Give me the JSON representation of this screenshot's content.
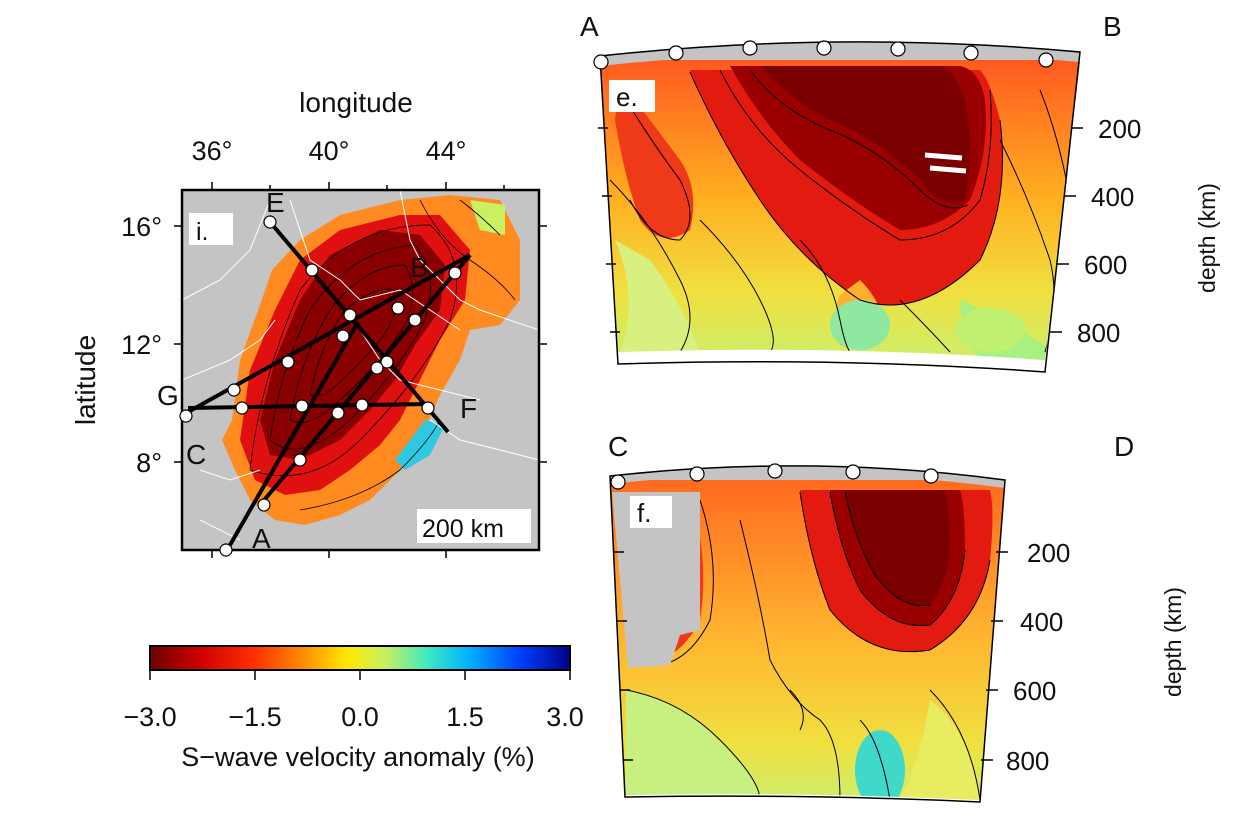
{
  "map": {
    "panel_label": "i.",
    "x_axis_title": "longitude",
    "y_axis_title": "latitude",
    "lon_ticks": [
      "36°",
      "40°",
      "44°"
    ],
    "lat_ticks": [
      "16°",
      "12°",
      "8°"
    ],
    "scale_bar": "200 km",
    "profile_labels": {
      "A": "A",
      "B": "B",
      "C": "C",
      "E": "E",
      "F": "F",
      "G": "G"
    }
  },
  "colorbar": {
    "ticks": [
      "−3.0",
      "−1.5",
      "0.0",
      "1.5",
      "3.0"
    ],
    "title": "S−wave velocity anomaly (%)",
    "colors": [
      "#7a0000",
      "#d40000",
      "#ff2a00",
      "#ff8c00",
      "#ffe400",
      "#c8f060",
      "#40e0c0",
      "#00a8ff",
      "#0040ff",
      "#000090"
    ]
  },
  "section_e": {
    "panel_label": "e.",
    "left_label": "A",
    "right_label": "B",
    "depth_ticks": [
      "200",
      "400",
      "600",
      "800"
    ],
    "depth_title": "depth (km)"
  },
  "section_f": {
    "panel_label": "f.",
    "left_label": "C",
    "right_label": "D",
    "depth_ticks": [
      "200",
      "400",
      "600",
      "800"
    ],
    "depth_title": "depth (km)"
  }
}
